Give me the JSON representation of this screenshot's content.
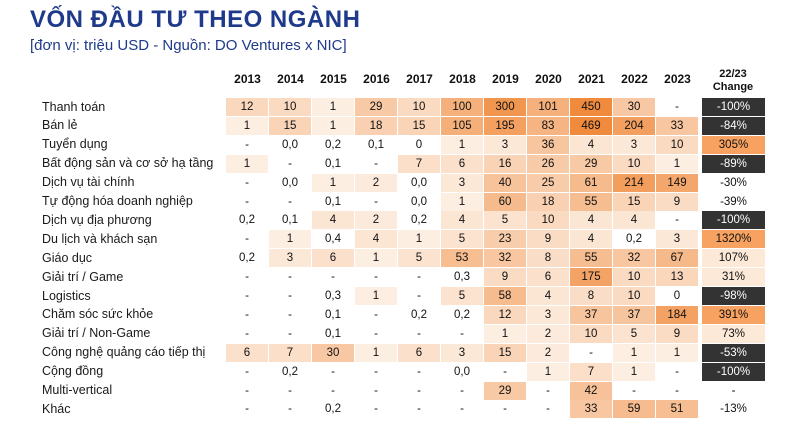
{
  "title": "VỐN ĐẦU TƯ THEO NGÀNH",
  "subtitle": "[đơn vị: triệu USD - Nguồn: DO Ventures x NIC]",
  "chart_data": {
    "type": "table",
    "columns": [
      "2013",
      "2014",
      "2015",
      "2016",
      "2017",
      "2018",
      "2019",
      "2020",
      "2021",
      "2022",
      "2023"
    ],
    "change_header": [
      "22/23",
      "Change"
    ],
    "rows": [
      {
        "label": "Thanh toán",
        "values": [
          "12",
          "10",
          "1",
          "29",
          "10",
          "100",
          "300",
          "101",
          "450",
          "30",
          "-"
        ],
        "change": "-100%"
      },
      {
        "label": "Bán lẻ",
        "values": [
          "1",
          "15",
          "1",
          "18",
          "15",
          "105",
          "195",
          "83",
          "469",
          "204",
          "33"
        ],
        "change": "-84%"
      },
      {
        "label": "Tuyển dụng",
        "values": [
          "-",
          "0,0",
          "0,2",
          "0,1",
          "0",
          "1",
          "3",
          "36",
          "4",
          "3",
          "10"
        ],
        "change": "305%"
      },
      {
        "label": "Bất động sản và cơ sở hạ tầng",
        "values": [
          "1",
          "-",
          "0,1",
          "-",
          "7",
          "6",
          "16",
          "26",
          "29",
          "10",
          "1"
        ],
        "change": "-89%"
      },
      {
        "label": "Dịch vụ tài chính",
        "values": [
          "-",
          "0,0",
          "1",
          "2",
          "0,0",
          "3",
          "40",
          "25",
          "61",
          "214",
          "149"
        ],
        "change": "-30%"
      },
      {
        "label": "Tự động hóa doanh nghiệp",
        "values": [
          "-",
          "-",
          "0,1",
          "-",
          "0,0",
          "1",
          "60",
          "18",
          "55",
          "15",
          "9"
        ],
        "change": "-39%"
      },
      {
        "label": "Dịch vụ địa phương",
        "values": [
          "0,2",
          "0,1",
          "4",
          "2",
          "0,2",
          "4",
          "5",
          "10",
          "4",
          "4",
          "-"
        ],
        "change": "-100%"
      },
      {
        "label": "Du lịch và khách sạn",
        "values": [
          "-",
          "1",
          "0,4",
          "4",
          "1",
          "5",
          "23",
          "9",
          "4",
          "0,2",
          "3"
        ],
        "change": "1320%"
      },
      {
        "label": "Giáo dục",
        "values": [
          "0,2",
          "3",
          "6",
          "1",
          "5",
          "53",
          "32",
          "8",
          "55",
          "32",
          "67"
        ],
        "change": "107%"
      },
      {
        "label": "Giải trí / Game",
        "values": [
          "-",
          "-",
          "-",
          "-",
          "-",
          "0,3",
          "9",
          "6",
          "175",
          "10",
          "13"
        ],
        "change": "31%"
      },
      {
        "label": "Logistics",
        "values": [
          "-",
          "-",
          "0,3",
          "1",
          "-",
          "5",
          "58",
          "4",
          "8",
          "10",
          "0"
        ],
        "change": "-98%"
      },
      {
        "label": "Chăm sóc sức khỏe",
        "values": [
          "-",
          "-",
          "0,1",
          "-",
          "0,2",
          "0,2",
          "12",
          "3",
          "37",
          "37",
          "184"
        ],
        "change": "391%"
      },
      {
        "label": "Giải trí / Non-Game",
        "values": [
          "-",
          "-",
          "0,1",
          "-",
          "-",
          "-",
          "1",
          "2",
          "10",
          "5",
          "9"
        ],
        "change": "73%"
      },
      {
        "label": "Công nghệ quảng cáo tiếp thị",
        "values": [
          "6",
          "7",
          "30",
          "1",
          "6",
          "3",
          "15",
          "2",
          "-",
          "1",
          "1"
        ],
        "change": "-53%"
      },
      {
        "label": "Cộng đồng",
        "values": [
          "-",
          "0,2",
          "-",
          "-",
          "-",
          "0,0",
          "-",
          "1",
          "7",
          "1",
          "-"
        ],
        "change": "-100%"
      },
      {
        "label": "Multi-vertical",
        "values": [
          "-",
          "-",
          "-",
          "-",
          "-",
          "-",
          "29",
          "-",
          "42",
          "-",
          "-"
        ],
        "change": "-"
      },
      {
        "label": "Khác",
        "values": [
          "-",
          "-",
          "0,2",
          "-",
          "-",
          "-",
          "-",
          "-",
          "33",
          "59",
          "51"
        ],
        "change": "-13%"
      }
    ]
  },
  "colors": {
    "title": "#1f3a8a",
    "heat_max": "#f08a3c",
    "heat_min": "#fdf1e7",
    "change_negative_dark": "#333333",
    "change_positive_orange": "#f7a260"
  }
}
